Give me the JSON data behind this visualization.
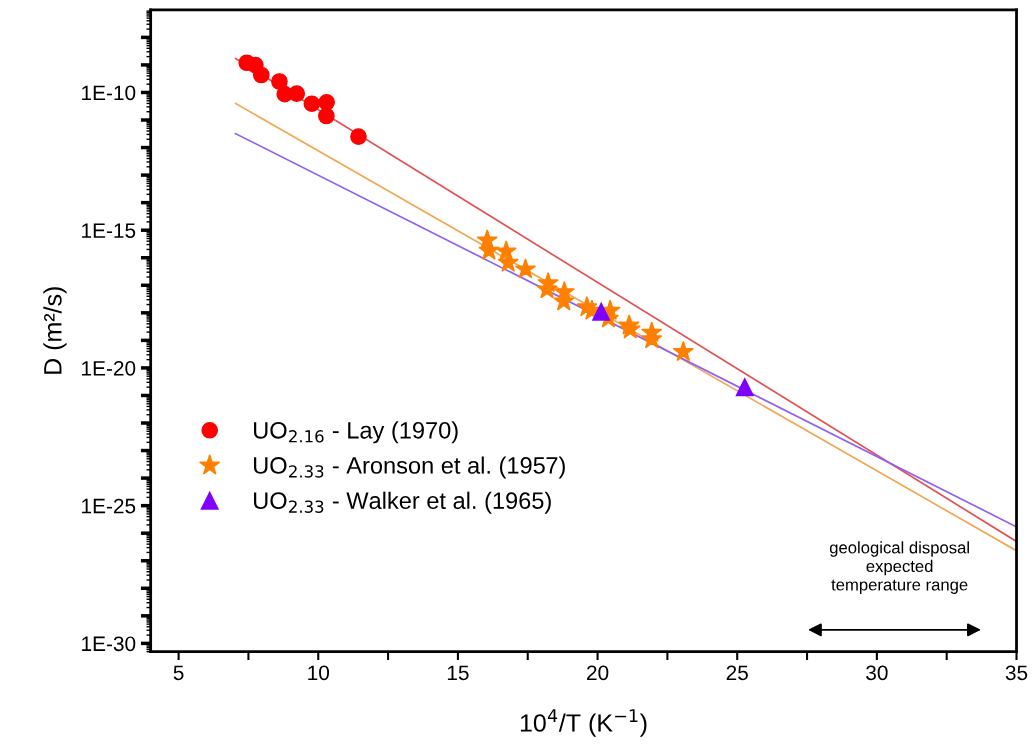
{
  "chart_data": {
    "type": "scatter",
    "xlabel": "10$^{4}$/T (K$^{−1}$)",
    "ylabel": "D (m²/s)",
    "log": "y",
    "grid": false,
    "legend": "lower left",
    "xlim": [
      4,
      35
    ],
    "xticks": [
      5,
      {
        "value": 7.5,
        "label": null
      },
      10,
      {
        "value": 12.5,
        "label": null
      },
      15,
      {
        "value": 17.5,
        "label": null
      },
      20,
      {
        "value": 22.5,
        "label": null
      },
      25,
      {
        "value": 27.5,
        "label": null
      },
      30,
      {
        "value": 32.5,
        "label": null
      },
      35
    ],
    "ylim": [
      5e-31,
      1e-07
    ],
    "yticks": [
      {
        "value": 1e-30,
        "label": "1E-30"
      },
      {
        "value": 1e-29,
        "label": null
      },
      {
        "value": 1e-28,
        "label": null
      },
      {
        "value": 1e-27,
        "label": null
      },
      {
        "value": 1e-26,
        "label": null
      },
      {
        "value": 1e-25,
        "label": "1E-25"
      },
      {
        "value": 1e-24,
        "label": null
      },
      {
        "value": 1e-23,
        "label": null
      },
      {
        "value": 1e-22,
        "label": null
      },
      {
        "value": 1e-21,
        "label": null
      },
      {
        "value": 1e-20,
        "label": "1E-20"
      },
      {
        "value": 1e-19,
        "label": null
      },
      {
        "value": 1e-18,
        "label": null
      },
      {
        "value": 1e-17,
        "label": null
      },
      {
        "value": 1e-16,
        "label": null
      },
      {
        "value": 1e-15,
        "label": "1E-15"
      },
      {
        "value": 1e-14,
        "label": null
      },
      {
        "value": 1e-13,
        "label": null
      },
      {
        "value": 1e-12,
        "label": null
      },
      {
        "value": 1e-11,
        "label": null
      },
      {
        "value": 1e-10,
        "label": "1E-10"
      },
      {
        "value": 1e-09,
        "label": null
      },
      {
        "value": 1e-08,
        "label": null
      }
    ],
    "series": [
      {
        "type": "line",
        "color": "#e35050",
        "marker": "none",
        "x": [
          7.04,
          35
        ],
        "values": [
          1.7e-09,
          5e-27
        ]
      },
      {
        "type": "line",
        "color": "#f2a552",
        "marker": "none",
        "x": [
          7.04,
          35
        ],
        "values": [
          4e-11,
          2.3e-27
        ]
      },
      {
        "type": "line",
        "color": "#9060f0",
        "marker": "none",
        "x": [
          7.04,
          35
        ],
        "values": [
          3.2e-12,
          1.7e-26
        ]
      },
      {
        "name": "UO$_{2.16}$ - Lay (1970)",
        "color": "#ff0000",
        "marker": "circle",
        "x": [
          7.44,
          7.75,
          7.96,
          8.61,
          8.8,
          9.23,
          9.77,
          10.3,
          10.29,
          11.44
        ],
        "values": [
          1.2e-09,
          9.8e-10,
          4.3e-10,
          2.5e-10,
          8.7e-11,
          9.1e-11,
          3.9e-11,
          4.4e-11,
          1.4e-11,
          2.5e-12
        ]
      },
      {
        "name": "UO$_{2.33}$ - Aronson et al. (1957)",
        "color": "#ff8000",
        "marker": "star",
        "x": [
          16.05,
          16.11,
          16.73,
          16.8,
          17.42,
          18.23,
          18.19,
          18.81,
          18.79,
          19.62,
          19.8,
          20.45,
          20.39,
          21.13,
          21.17,
          21.94,
          21.94,
          23.07
        ],
        "values": [
          4.3e-16,
          1.8e-16,
          1.7e-16,
          6.6e-17,
          3.8e-17,
          1.2e-17,
          7.1e-18,
          5.6e-18,
          2.6e-18,
          1.6e-18,
          1.2e-18,
          1.2e-18,
          6.2e-19,
          3.5e-19,
          2.5e-19,
          1.9e-19,
          1.1e-19,
          3.8e-20
        ]
      },
      {
        "name": "UO$_{2.33}$ - Walker et al. (1965)",
        "color": "#8000ff",
        "marker": "triangle",
        "x": [
          20.13,
          25.27
        ],
        "values": [
          1.1e-18,
          2e-21
        ]
      }
    ],
    "annotations": [
      "geological disposal\nexpected\ntemperature range"
    ]
  }
}
